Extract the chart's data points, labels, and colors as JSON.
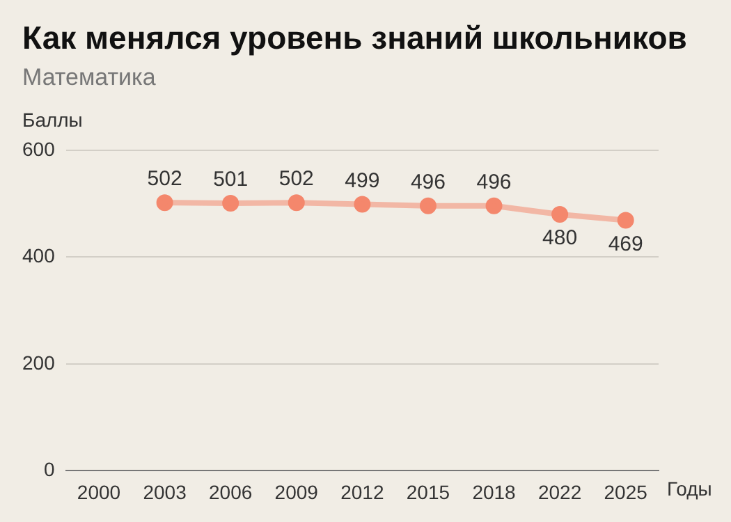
{
  "chart_data": {
    "type": "line",
    "title": "Как менялся уровень знаний школьников",
    "subtitle": "Математика",
    "ylabel": "Баллы",
    "xlabel": "Годы",
    "categories": [
      "2000",
      "2003",
      "2006",
      "2009",
      "2012",
      "2015",
      "2018",
      "2022",
      "2025"
    ],
    "series": [
      {
        "color": "#f4876c",
        "values": [
          null,
          502,
          501,
          502,
          499,
          496,
          496,
          480,
          469
        ]
      }
    ],
    "ylim": [
      0,
      600
    ],
    "yticks": [
      0,
      200,
      400,
      600
    ],
    "grid": "y",
    "legend": false,
    "marker": "circle",
    "line_style": "solid",
    "data_labels": true
  }
}
